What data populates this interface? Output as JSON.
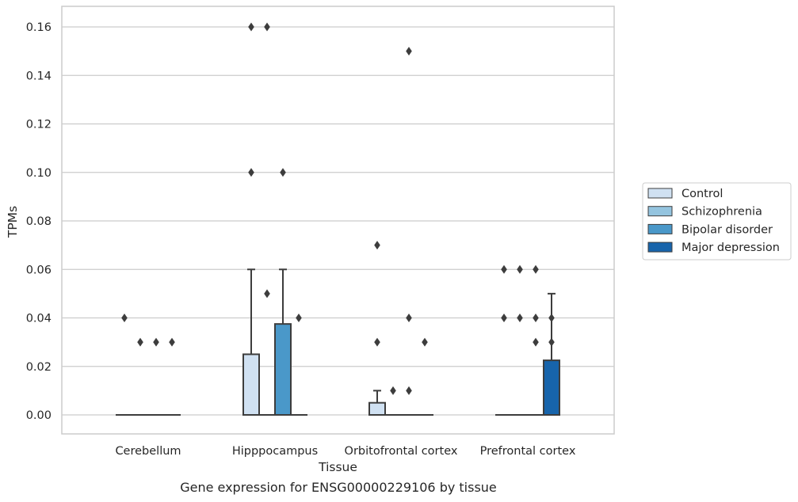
{
  "caption": "Gene expression for ENSG00000229106 by tissue",
  "chart_data": {
    "type": "box",
    "xlabel": "Tissue",
    "ylabel": "TPMs",
    "ylim": [
      -0.008,
      0.168
    ],
    "yticks": [
      "0.00",
      "0.02",
      "0.04",
      "0.06",
      "0.08",
      "0.10",
      "0.12",
      "0.14",
      "0.16"
    ],
    "grid": true,
    "legend_position": "right, outside plot",
    "categories": [
      "Cerebellum",
      "Hipppocampus",
      "Orbitofrontal cortex",
      "Prefrontal cortex"
    ],
    "series": [
      {
        "name": "Control",
        "color": "#d0e1f2",
        "boxes": [
          {
            "q1": 0,
            "median": 0,
            "q3": 0,
            "whisker_low": 0,
            "whisker_high": 0,
            "outliers": [
              0.04
            ]
          },
          {
            "q1": 0,
            "median": 0,
            "q3": 0.025,
            "whisker_low": 0,
            "whisker_high": 0.06,
            "outliers": [
              0.1,
              0.16
            ]
          },
          {
            "q1": 0,
            "median": 0,
            "q3": 0.005,
            "whisker_low": 0,
            "whisker_high": 0.01,
            "outliers": [
              0.03,
              0.07
            ]
          },
          {
            "q1": 0,
            "median": 0,
            "q3": 0,
            "whisker_low": 0,
            "whisker_high": 0,
            "outliers": [
              0.04,
              0.06
            ]
          }
        ]
      },
      {
        "name": "Schizophrenia",
        "color": "#94c4df",
        "boxes": [
          {
            "q1": 0,
            "median": 0,
            "q3": 0,
            "whisker_low": 0,
            "whisker_high": 0,
            "outliers": [
              0.03
            ]
          },
          {
            "q1": 0,
            "median": 0,
            "q3": 0,
            "whisker_low": 0,
            "whisker_high": 0,
            "outliers": [
              0.05,
              0.16
            ]
          },
          {
            "q1": 0,
            "median": 0,
            "q3": 0,
            "whisker_low": 0,
            "whisker_high": 0,
            "outliers": [
              0.01
            ]
          },
          {
            "q1": 0,
            "median": 0,
            "q3": 0,
            "whisker_low": 0,
            "whisker_high": 0,
            "outliers": [
              0.04,
              0.06
            ]
          }
        ]
      },
      {
        "name": "Bipolar disorder",
        "color": "#4a98c9",
        "boxes": [
          {
            "q1": 0,
            "median": 0,
            "q3": 0,
            "whisker_low": 0,
            "whisker_high": 0,
            "outliers": [
              0.03
            ]
          },
          {
            "q1": 0,
            "median": 0,
            "q3": 0.0375,
            "whisker_low": 0,
            "whisker_high": 0.06,
            "outliers": [
              0.1
            ]
          },
          {
            "q1": 0,
            "median": 0,
            "q3": 0,
            "whisker_low": 0,
            "whisker_high": 0,
            "outliers": [
              0.01,
              0.04,
              0.15
            ]
          },
          {
            "q1": 0,
            "median": 0,
            "q3": 0,
            "whisker_low": 0,
            "whisker_high": 0,
            "outliers": [
              0.03,
              0.04,
              0.06
            ]
          }
        ]
      },
      {
        "name": "Major depression",
        "color": "#1764ab",
        "boxes": [
          {
            "q1": 0,
            "median": 0,
            "q3": 0,
            "whisker_low": 0,
            "whisker_high": 0,
            "outliers": [
              0.03
            ]
          },
          {
            "q1": 0,
            "median": 0,
            "q3": 0,
            "whisker_low": 0,
            "whisker_high": 0,
            "outliers": [
              0.04
            ]
          },
          {
            "q1": 0,
            "median": 0,
            "q3": 0,
            "whisker_low": 0,
            "whisker_high": 0,
            "outliers": [
              0.03
            ]
          },
          {
            "q1": 0,
            "median": 0,
            "q3": 0.0225,
            "whisker_low": 0,
            "whisker_high": 0.05,
            "outliers": [
              0.03,
              0.04
            ]
          }
        ]
      }
    ]
  }
}
